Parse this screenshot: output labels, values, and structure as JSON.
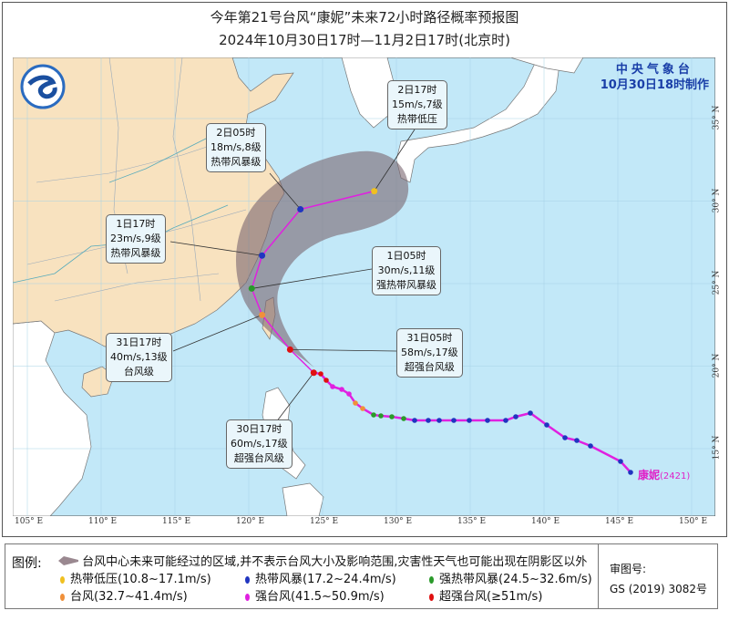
{
  "title": {
    "line1": "今年第21号台风“康妮”未来72小时路径概率预报图",
    "line2": "2024年10月30日17时—11月2日17时(北京时)"
  },
  "agency": {
    "name": "中央气象台",
    "issued": "10月30日18时制作"
  },
  "typhoon": {
    "name": "康妮",
    "code": "(2421)"
  },
  "forecast_points": [
    {
      "time": "30日17时",
      "wind": "60m/s,17级",
      "category": "超强台风级",
      "lon": 124.4,
      "lat": 19.6,
      "color": "#e01010"
    },
    {
      "time": "31日05时",
      "wind": "58m/s,17级",
      "category": "超强台风级",
      "lon": 122.8,
      "lat": 21.0,
      "color": "#e01010"
    },
    {
      "time": "31日17时",
      "wind": "40m/s,13级",
      "category": "台风级",
      "lon": 120.9,
      "lat": 23.1,
      "color": "#f0903a"
    },
    {
      "time": "1日05时",
      "wind": "30m/s,11级",
      "category": "强热带风暴级",
      "lon": 120.2,
      "lat": 24.7,
      "color": "#2a9a2a"
    },
    {
      "time": "1日17时",
      "wind": "23m/s,9级",
      "category": "热带风暴级",
      "lon": 120.9,
      "lat": 26.7,
      "color": "#2035c0"
    },
    {
      "time": "2日05时",
      "wind": "18m/s,8级",
      "category": "热带风暴级",
      "lon": 123.5,
      "lat": 29.5,
      "color": "#2035c0"
    },
    {
      "time": "2日17时",
      "wind": "15m/s,7级",
      "category": "热带低压",
      "lon": 128.5,
      "lat": 30.6,
      "color": "#f0c020"
    }
  ],
  "axes": {
    "lon_labels": [
      "105° E",
      "110° E",
      "115° E",
      "120° E",
      "125° E",
      "130° E",
      "135° E",
      "140° E",
      "145° E",
      "150° E"
    ],
    "lat_labels": [
      "35° N",
      "30° N",
      "25° N",
      "20° N",
      "15° N"
    ]
  },
  "legend": {
    "title": "图例:",
    "cone": "台风中心未来可能经过的区域,并不表示台风大小及影响范围,灾害性天气也可能出现在阴影区以外",
    "items": [
      {
        "label": "热带低压(10.8~17.1m/s)",
        "color": "#f0c020"
      },
      {
        "label": "热带风暴(17.2~24.4m/s)",
        "color": "#2035c0"
      },
      {
        "label": "强热带风暴(24.5~32.6m/s)",
        "color": "#2a9a2a"
      },
      {
        "label": "台风(32.7~41.4m/s)",
        "color": "#f0903a"
      },
      {
        "label": "强台风(41.5~50.9m/s)",
        "color": "#e020e0"
      },
      {
        "label": "超强台风(≥51m/s)",
        "color": "#e01010"
      }
    ],
    "approval_label": "审图号:",
    "approval_no": "GS (2019) 3082号"
  },
  "colors": {
    "sea": "#c2e8f8",
    "china": "#f8e2bf",
    "other_land": "#ffffff",
    "track": "#e020e0",
    "cone": "#8a7680"
  }
}
